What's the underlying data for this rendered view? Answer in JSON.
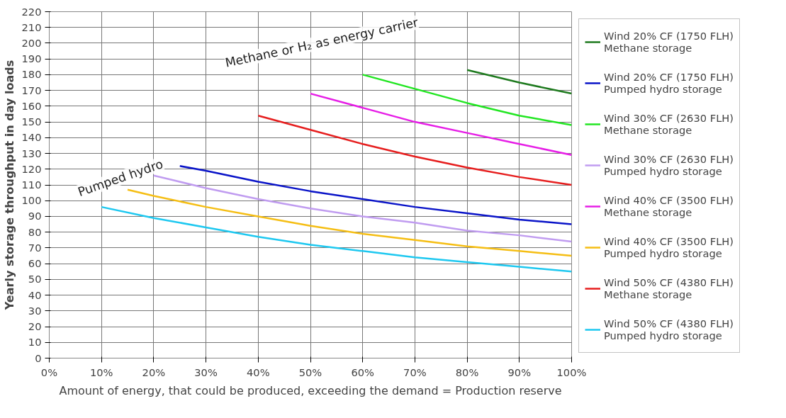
{
  "chart_data": {
    "type": "line",
    "xlabel": "Amount of energy, that could be produced, exceeding the demand = Production reserve",
    "ylabel": "Yearly storage throughput in day loads",
    "annotations": [
      "Pumped hydro",
      "Methane or H₂ as energy carrier"
    ],
    "xlim": [
      0,
      100
    ],
    "ylim": [
      0,
      220
    ],
    "xticks": [
      {
        "value": 0,
        "label": "0%"
      },
      {
        "value": 10,
        "label": "10%"
      },
      {
        "value": 20,
        "label": "20%"
      },
      {
        "value": 30,
        "label": "30%"
      },
      {
        "value": 40,
        "label": "40%"
      },
      {
        "value": 50,
        "label": "50%"
      },
      {
        "value": 60,
        "label": "60%"
      },
      {
        "value": 70,
        "label": "70%"
      },
      {
        "value": 80,
        "label": "80%"
      },
      {
        "value": 90,
        "label": "90%"
      },
      {
        "value": 100,
        "label": "100%"
      }
    ],
    "yticks": [
      0,
      10,
      20,
      30,
      40,
      50,
      60,
      70,
      80,
      90,
      100,
      110,
      120,
      130,
      140,
      150,
      160,
      170,
      180,
      190,
      200,
      210,
      220
    ],
    "grid": true,
    "legend": "right",
    "marker": "none",
    "line_style": "solid",
    "series": [
      {
        "name": "Wind 20% CF (1750 FLH)\nMethane storage",
        "color": "#1e7a1e",
        "x": [
          80,
          90,
          100
        ],
        "values": [
          183,
          175,
          168
        ]
      },
      {
        "name": "Wind 20% CF (1750 FLH)\nPumped hydro storage",
        "color": "#0a14c8",
        "x": [
          25,
          30,
          40,
          50,
          60,
          70,
          80,
          90,
          100
        ],
        "values": [
          122,
          119,
          112,
          106,
          101,
          96,
          92,
          88,
          85
        ]
      },
      {
        "name": "Wind 30% CF (2630 FLH)\nMethane storage",
        "color": "#22e622",
        "x": [
          60,
          70,
          80,
          90,
          100
        ],
        "values": [
          180,
          171,
          162,
          154,
          148
        ]
      },
      {
        "name": "Wind 30% CF (2630 FLH)\nPumped hydro storage",
        "color": "#c09cf0",
        "x": [
          20,
          30,
          40,
          50,
          60,
          70,
          80,
          90,
          100
        ],
        "values": [
          116,
          108,
          101,
          95,
          90,
          86,
          81,
          78,
          74
        ]
      },
      {
        "name": "Wind 40% CF (3500 FLH)\nMethane storage",
        "color": "#e61ee6",
        "x": [
          50,
          60,
          70,
          80,
          90,
          100
        ],
        "values": [
          168,
          159,
          150,
          143,
          136,
          129
        ]
      },
      {
        "name": "Wind 40% CF (3500 FLH)\nPumped hydro storage",
        "color": "#f5be14",
        "x": [
          15,
          20,
          30,
          40,
          50,
          60,
          70,
          80,
          90,
          100
        ],
        "values": [
          107,
          103,
          96,
          90,
          84,
          79,
          75,
          71,
          68,
          65
        ]
      },
      {
        "name": "Wind 50% CF (4380 FLH)\nMethane storage",
        "color": "#e61e1e",
        "x": [
          40,
          50,
          60,
          70,
          80,
          90,
          100
        ],
        "values": [
          154,
          145,
          136,
          128,
          121,
          115,
          110
        ]
      },
      {
        "name": "Wind 50% CF (4380 FLH)\nPumped hydro storage",
        "color": "#1ec8f0",
        "x": [
          10,
          20,
          30,
          40,
          50,
          60,
          70,
          80,
          90,
          100
        ],
        "values": [
          96,
          89,
          83,
          77,
          72,
          68,
          64,
          61,
          58,
          55
        ]
      }
    ]
  }
}
